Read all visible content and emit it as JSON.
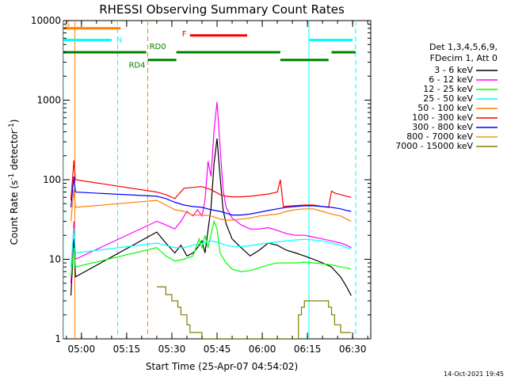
{
  "chart_data": {
    "type": "line",
    "title": "RHESSI Observing Summary Count Rates",
    "xlabel": "Start Time (25-Apr-07 04:54:02)",
    "ylabel_main": "Count Rate (s",
    "ylabel_sup1": "-1",
    "ylabel_mid": " detector",
    "ylabel_sup2": "-1",
    "ylabel_end": ")",
    "yscale": "log",
    "ylim": [
      1,
      10000
    ],
    "xlim_minutes": [
      -6,
      96
    ],
    "x_ticks": [
      {
        "label": "05:00",
        "m": 0
      },
      {
        "label": "05:15",
        "m": 15
      },
      {
        "label": "05:30",
        "m": 30
      },
      {
        "label": "05:45",
        "m": 45
      },
      {
        "label": "06:00",
        "m": 60
      },
      {
        "label": "06:15",
        "m": 75
      },
      {
        "label": "06:30",
        "m": 90
      }
    ],
    "y_ticks": [
      {
        "label": "1",
        "v": 1
      },
      {
        "label": "10",
        "v": 10
      },
      {
        "label": "100",
        "v": 100
      },
      {
        "label": "1000",
        "v": 1000
      },
      {
        "label": "10000",
        "v": 10000
      }
    ],
    "legend_header1": "Det 1,3,4,5,6,9,",
    "legend_header2": "FDecim 1, Att 0",
    "date_stamp": "14-Oct-2021 19:45",
    "series": [
      {
        "name": "3 - 6 keV",
        "color": "#000000",
        "points": [
          [
            -3.5,
            3.5
          ],
          [
            -2.5,
            18
          ],
          [
            -2,
            6
          ],
          [
            25,
            22
          ],
          [
            28,
            16
          ],
          [
            31,
            12
          ],
          [
            33,
            15
          ],
          [
            35,
            11
          ],
          [
            37,
            12
          ],
          [
            38.5,
            14
          ],
          [
            40,
            17
          ],
          [
            41,
            12
          ],
          [
            43,
            45
          ],
          [
            44,
            160
          ],
          [
            45,
            330
          ],
          [
            46,
            110
          ],
          [
            47,
            42
          ],
          [
            48,
            28
          ],
          [
            50,
            18
          ],
          [
            53,
            14
          ],
          [
            56,
            11
          ],
          [
            59,
            13
          ],
          [
            62,
            16
          ],
          [
            65,
            15
          ],
          [
            68,
            13
          ],
          [
            71,
            12
          ],
          [
            74,
            11
          ],
          [
            77,
            10
          ],
          [
            80,
            9
          ],
          [
            83,
            8
          ],
          [
            86,
            6
          ],
          [
            88,
            4.5
          ],
          [
            89.5,
            3.5
          ]
        ]
      },
      {
        "name": "6 - 12 keV",
        "color": "#ff00ff",
        "points": [
          [
            -3.5,
            5
          ],
          [
            -2.5,
            30
          ],
          [
            -2,
            10
          ],
          [
            25,
            30
          ],
          [
            28,
            27
          ],
          [
            31,
            24
          ],
          [
            33,
            30
          ],
          [
            35,
            40
          ],
          [
            37,
            35
          ],
          [
            38.5,
            42
          ],
          [
            40,
            35
          ],
          [
            41,
            55
          ],
          [
            42,
            170
          ],
          [
            43,
            110
          ],
          [
            44,
            420
          ],
          [
            45,
            950
          ],
          [
            46,
            260
          ],
          [
            47,
            75
          ],
          [
            48,
            45
          ],
          [
            50,
            33
          ],
          [
            53,
            27
          ],
          [
            56,
            24
          ],
          [
            59,
            24
          ],
          [
            62,
            25
          ],
          [
            65,
            23
          ],
          [
            68,
            21
          ],
          [
            71,
            20
          ],
          [
            74,
            20
          ],
          [
            77,
            19
          ],
          [
            80,
            18
          ],
          [
            83,
            17
          ],
          [
            86,
            16
          ],
          [
            88,
            15
          ],
          [
            89.5,
            14
          ]
        ]
      },
      {
        "name": "12 - 25 keV",
        "color": "#00ff00",
        "points": [
          [
            -3.5,
            6
          ],
          [
            -2.5,
            14
          ],
          [
            -2,
            8
          ],
          [
            25,
            14
          ],
          [
            28,
            11
          ],
          [
            31,
            9.5
          ],
          [
            34,
            10
          ],
          [
            37,
            11
          ],
          [
            39,
            18
          ],
          [
            40,
            14
          ],
          [
            41,
            20
          ],
          [
            42,
            14
          ],
          [
            44,
            30
          ],
          [
            45,
            24
          ],
          [
            46,
            12
          ],
          [
            48,
            9
          ],
          [
            50,
            7.5
          ],
          [
            53,
            7
          ],
          [
            56,
            7.2
          ],
          [
            59,
            7.8
          ],
          [
            62,
            8.5
          ],
          [
            65,
            9
          ],
          [
            68,
            9
          ],
          [
            71,
            9
          ],
          [
            74,
            9.2
          ],
          [
            77,
            9
          ],
          [
            80,
            8.8
          ],
          [
            83,
            8.5
          ],
          [
            86,
            8
          ],
          [
            88,
            7.8
          ],
          [
            89.5,
            7.5
          ]
        ]
      },
      {
        "name": "25 - 50 keV",
        "color": "#00ffff",
        "points": [
          [
            -3.5,
            8
          ],
          [
            -2.5,
            25
          ],
          [
            -2,
            12
          ],
          [
            25,
            16
          ],
          [
            28,
            15
          ],
          [
            31,
            14
          ],
          [
            34,
            14
          ],
          [
            37,
            15
          ],
          [
            40,
            16
          ],
          [
            43,
            17
          ],
          [
            46,
            16
          ],
          [
            48,
            15
          ],
          [
            50,
            14.5
          ],
          [
            53,
            14.5
          ],
          [
            56,
            14.8
          ],
          [
            59,
            15.5
          ],
          [
            62,
            16
          ],
          [
            65,
            16.5
          ],
          [
            68,
            17
          ],
          [
            71,
            17.5
          ],
          [
            74,
            17.8
          ],
          [
            77,
            17.5
          ],
          [
            80,
            17
          ],
          [
            83,
            16
          ],
          [
            86,
            15
          ],
          [
            88,
            14
          ],
          [
            89.5,
            13.5
          ]
        ]
      },
      {
        "name": "50 - 100 keV",
        "color": "#ff7f00",
        "points": [
          [
            -3.5,
            30
          ],
          [
            -2.5,
            75
          ],
          [
            -2,
            45
          ],
          [
            25,
            55
          ],
          [
            28,
            48
          ],
          [
            31,
            42
          ],
          [
            34,
            40
          ],
          [
            37,
            36
          ],
          [
            40,
            36
          ],
          [
            43,
            35
          ],
          [
            46,
            32
          ],
          [
            48,
            31
          ],
          [
            50,
            31
          ],
          [
            53,
            32
          ],
          [
            56,
            33
          ],
          [
            59,
            35
          ],
          [
            62,
            36
          ],
          [
            65,
            37
          ],
          [
            68,
            40
          ],
          [
            71,
            42
          ],
          [
            74,
            43
          ],
          [
            77,
            43
          ],
          [
            80,
            40
          ],
          [
            83,
            37
          ],
          [
            86,
            35
          ],
          [
            88,
            32
          ],
          [
            89.5,
            30
          ]
        ]
      },
      {
        "name": "100 - 300 keV",
        "color": "#ff0000",
        "points": [
          [
            -3.5,
            55
          ],
          [
            -2.5,
            175
          ],
          [
            -2,
            100
          ],
          [
            25,
            70
          ],
          [
            28,
            65
          ],
          [
            31,
            58
          ],
          [
            34,
            78
          ],
          [
            37,
            80
          ],
          [
            40,
            82
          ],
          [
            43,
            75
          ],
          [
            46,
            65
          ],
          [
            48,
            62
          ],
          [
            50,
            61
          ],
          [
            53,
            61
          ],
          [
            56,
            62
          ],
          [
            59,
            64
          ],
          [
            62,
            66
          ],
          [
            65,
            70
          ],
          [
            66,
            100
          ],
          [
            67,
            46
          ],
          [
            70,
            47
          ],
          [
            74,
            48
          ],
          [
            77,
            48
          ],
          [
            80,
            46
          ],
          [
            82,
            45
          ],
          [
            83,
            72
          ],
          [
            84,
            68
          ],
          [
            86,
            65
          ],
          [
            88,
            62
          ],
          [
            89.5,
            60
          ]
        ]
      },
      {
        "name": "300 - 800 keV",
        "color": "#0000ff",
        "points": [
          [
            -3.5,
            45
          ],
          [
            -2.5,
            110
          ],
          [
            -2,
            70
          ],
          [
            25,
            62
          ],
          [
            28,
            58
          ],
          [
            31,
            52
          ],
          [
            34,
            48
          ],
          [
            37,
            46
          ],
          [
            40,
            45
          ],
          [
            43,
            42
          ],
          [
            46,
            40
          ],
          [
            48,
            38
          ],
          [
            50,
            36
          ],
          [
            53,
            36
          ],
          [
            56,
            37
          ],
          [
            59,
            39
          ],
          [
            62,
            41
          ],
          [
            65,
            43
          ],
          [
            68,
            45
          ],
          [
            71,
            46
          ],
          [
            74,
            47
          ],
          [
            77,
            47
          ],
          [
            80,
            46
          ],
          [
            83,
            45
          ],
          [
            86,
            43
          ],
          [
            88,
            41
          ],
          [
            89.5,
            40
          ]
        ]
      },
      {
        "name": "800 - 7000 keV",
        "color": "#e8a000",
        "points": []
      },
      {
        "name": "7000 - 15000 keV",
        "color": "#808000",
        "points": [
          [
            25,
            4.5
          ],
          [
            28,
            4.5
          ],
          [
            28,
            3.6
          ],
          [
            30,
            3.6
          ],
          [
            30,
            3
          ],
          [
            32,
            3
          ],
          [
            32,
            2.5
          ],
          [
            33,
            2.5
          ],
          [
            33,
            2
          ],
          [
            35,
            2
          ],
          [
            35,
            1.5
          ],
          [
            36,
            1.5
          ],
          [
            36,
            1.2
          ],
          [
            40,
            1.2
          ],
          [
            40,
            1
          ],
          [
            72,
            1
          ],
          [
            72,
            2
          ],
          [
            73,
            2
          ],
          [
            73,
            2.5
          ],
          [
            74,
            2.5
          ],
          [
            74,
            3
          ],
          [
            82,
            3
          ],
          [
            82,
            2.5
          ],
          [
            83,
            2.5
          ],
          [
            83,
            2
          ],
          [
            84,
            2
          ],
          [
            84,
            1.5
          ],
          [
            86,
            1.5
          ],
          [
            86,
            1.2
          ],
          [
            89.5,
            1.2
          ]
        ]
      }
    ],
    "flag_lines": [
      {
        "label": "S",
        "color": "#ff7f00",
        "y": 8000,
        "segments": [
          [
            -6,
            13
          ]
        ]
      },
      {
        "label": "N",
        "color": "#00ffff",
        "y": 5700,
        "segments": [
          [
            -6,
            10
          ],
          [
            75.5,
            90
          ]
        ]
      },
      {
        "label": "RD0",
        "color": "#008000",
        "y": 4000,
        "segments": [
          [
            -6,
            21.5
          ],
          [
            31.5,
            66
          ],
          [
            83,
            91
          ]
        ]
      },
      {
        "label": "RD4",
        "color": "#008000",
        "y": 3200,
        "segments": [
          [
            22,
            31.5
          ],
          [
            66,
            82
          ]
        ]
      },
      {
        "label": "F",
        "color": "#ff0000",
        "y": 6500,
        "segments": [
          [
            36,
            55
          ]
        ]
      }
    ],
    "vertical_markers": [
      {
        "m": -6,
        "color": "#00ffff",
        "style": "solid"
      },
      {
        "m": -2.2,
        "color": "#ff7f00",
        "style": "solid"
      },
      {
        "m": 12,
        "color": "#00ffff",
        "style": "dashed"
      },
      {
        "m": 22,
        "color": "#ff7f00",
        "style": "dashed"
      },
      {
        "m": 75.5,
        "color": "#00ffff",
        "style": "solid"
      },
      {
        "m": 91,
        "color": "#00ffff",
        "style": "dashed"
      }
    ]
  }
}
